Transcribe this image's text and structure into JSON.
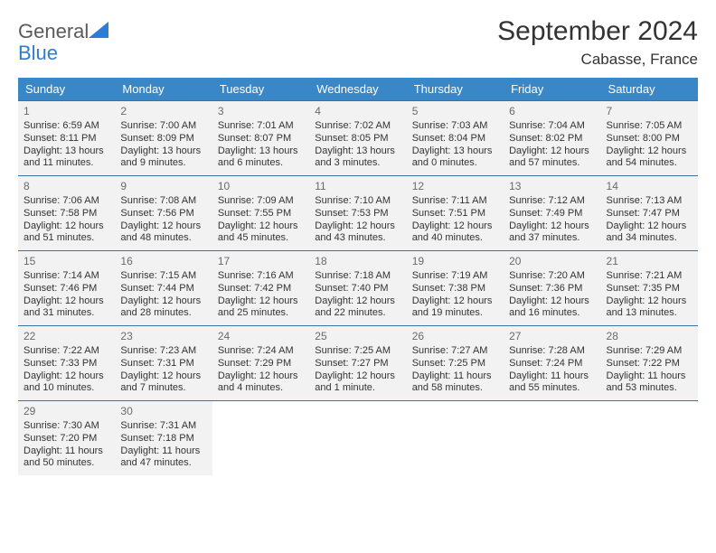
{
  "brand": {
    "name_a": "General",
    "name_b": "Blue"
  },
  "title": "September 2024",
  "location": "Cabasse, France",
  "colors": {
    "header_bg": "#3a87c8",
    "header_text": "#ffffff",
    "cell_bg": "#f2f2f2",
    "rule": "#3a72a6",
    "logo_blue": "#2e7cd6",
    "logo_gray": "#5a5a5a"
  },
  "weekdays": [
    "Sunday",
    "Monday",
    "Tuesday",
    "Wednesday",
    "Thursday",
    "Friday",
    "Saturday"
  ],
  "weeks": [
    [
      {
        "n": "1",
        "sr": "6:59 AM",
        "ss": "8:11 PM",
        "dl": "13 hours and 11 minutes."
      },
      {
        "n": "2",
        "sr": "7:00 AM",
        "ss": "8:09 PM",
        "dl": "13 hours and 9 minutes."
      },
      {
        "n": "3",
        "sr": "7:01 AM",
        "ss": "8:07 PM",
        "dl": "13 hours and 6 minutes."
      },
      {
        "n": "4",
        "sr": "7:02 AM",
        "ss": "8:05 PM",
        "dl": "13 hours and 3 minutes."
      },
      {
        "n": "5",
        "sr": "7:03 AM",
        "ss": "8:04 PM",
        "dl": "13 hours and 0 minutes."
      },
      {
        "n": "6",
        "sr": "7:04 AM",
        "ss": "8:02 PM",
        "dl": "12 hours and 57 minutes."
      },
      {
        "n": "7",
        "sr": "7:05 AM",
        "ss": "8:00 PM",
        "dl": "12 hours and 54 minutes."
      }
    ],
    [
      {
        "n": "8",
        "sr": "7:06 AM",
        "ss": "7:58 PM",
        "dl": "12 hours and 51 minutes."
      },
      {
        "n": "9",
        "sr": "7:08 AM",
        "ss": "7:56 PM",
        "dl": "12 hours and 48 minutes."
      },
      {
        "n": "10",
        "sr": "7:09 AM",
        "ss": "7:55 PM",
        "dl": "12 hours and 45 minutes."
      },
      {
        "n": "11",
        "sr": "7:10 AM",
        "ss": "7:53 PM",
        "dl": "12 hours and 43 minutes."
      },
      {
        "n": "12",
        "sr": "7:11 AM",
        "ss": "7:51 PM",
        "dl": "12 hours and 40 minutes."
      },
      {
        "n": "13",
        "sr": "7:12 AM",
        "ss": "7:49 PM",
        "dl": "12 hours and 37 minutes."
      },
      {
        "n": "14",
        "sr": "7:13 AM",
        "ss": "7:47 PM",
        "dl": "12 hours and 34 minutes."
      }
    ],
    [
      {
        "n": "15",
        "sr": "7:14 AM",
        "ss": "7:46 PM",
        "dl": "12 hours and 31 minutes."
      },
      {
        "n": "16",
        "sr": "7:15 AM",
        "ss": "7:44 PM",
        "dl": "12 hours and 28 minutes."
      },
      {
        "n": "17",
        "sr": "7:16 AM",
        "ss": "7:42 PM",
        "dl": "12 hours and 25 minutes."
      },
      {
        "n": "18",
        "sr": "7:18 AM",
        "ss": "7:40 PM",
        "dl": "12 hours and 22 minutes."
      },
      {
        "n": "19",
        "sr": "7:19 AM",
        "ss": "7:38 PM",
        "dl": "12 hours and 19 minutes."
      },
      {
        "n": "20",
        "sr": "7:20 AM",
        "ss": "7:36 PM",
        "dl": "12 hours and 16 minutes."
      },
      {
        "n": "21",
        "sr": "7:21 AM",
        "ss": "7:35 PM",
        "dl": "12 hours and 13 minutes."
      }
    ],
    [
      {
        "n": "22",
        "sr": "7:22 AM",
        "ss": "7:33 PM",
        "dl": "12 hours and 10 minutes."
      },
      {
        "n": "23",
        "sr": "7:23 AM",
        "ss": "7:31 PM",
        "dl": "12 hours and 7 minutes."
      },
      {
        "n": "24",
        "sr": "7:24 AM",
        "ss": "7:29 PM",
        "dl": "12 hours and 4 minutes."
      },
      {
        "n": "25",
        "sr": "7:25 AM",
        "ss": "7:27 PM",
        "dl": "12 hours and 1 minute."
      },
      {
        "n": "26",
        "sr": "7:27 AM",
        "ss": "7:25 PM",
        "dl": "11 hours and 58 minutes."
      },
      {
        "n": "27",
        "sr": "7:28 AM",
        "ss": "7:24 PM",
        "dl": "11 hours and 55 minutes."
      },
      {
        "n": "28",
        "sr": "7:29 AM",
        "ss": "7:22 PM",
        "dl": "11 hours and 53 minutes."
      }
    ],
    [
      {
        "n": "29",
        "sr": "7:30 AM",
        "ss": "7:20 PM",
        "dl": "11 hours and 50 minutes."
      },
      {
        "n": "30",
        "sr": "7:31 AM",
        "ss": "7:18 PM",
        "dl": "11 hours and 47 minutes."
      },
      null,
      null,
      null,
      null,
      null
    ]
  ]
}
